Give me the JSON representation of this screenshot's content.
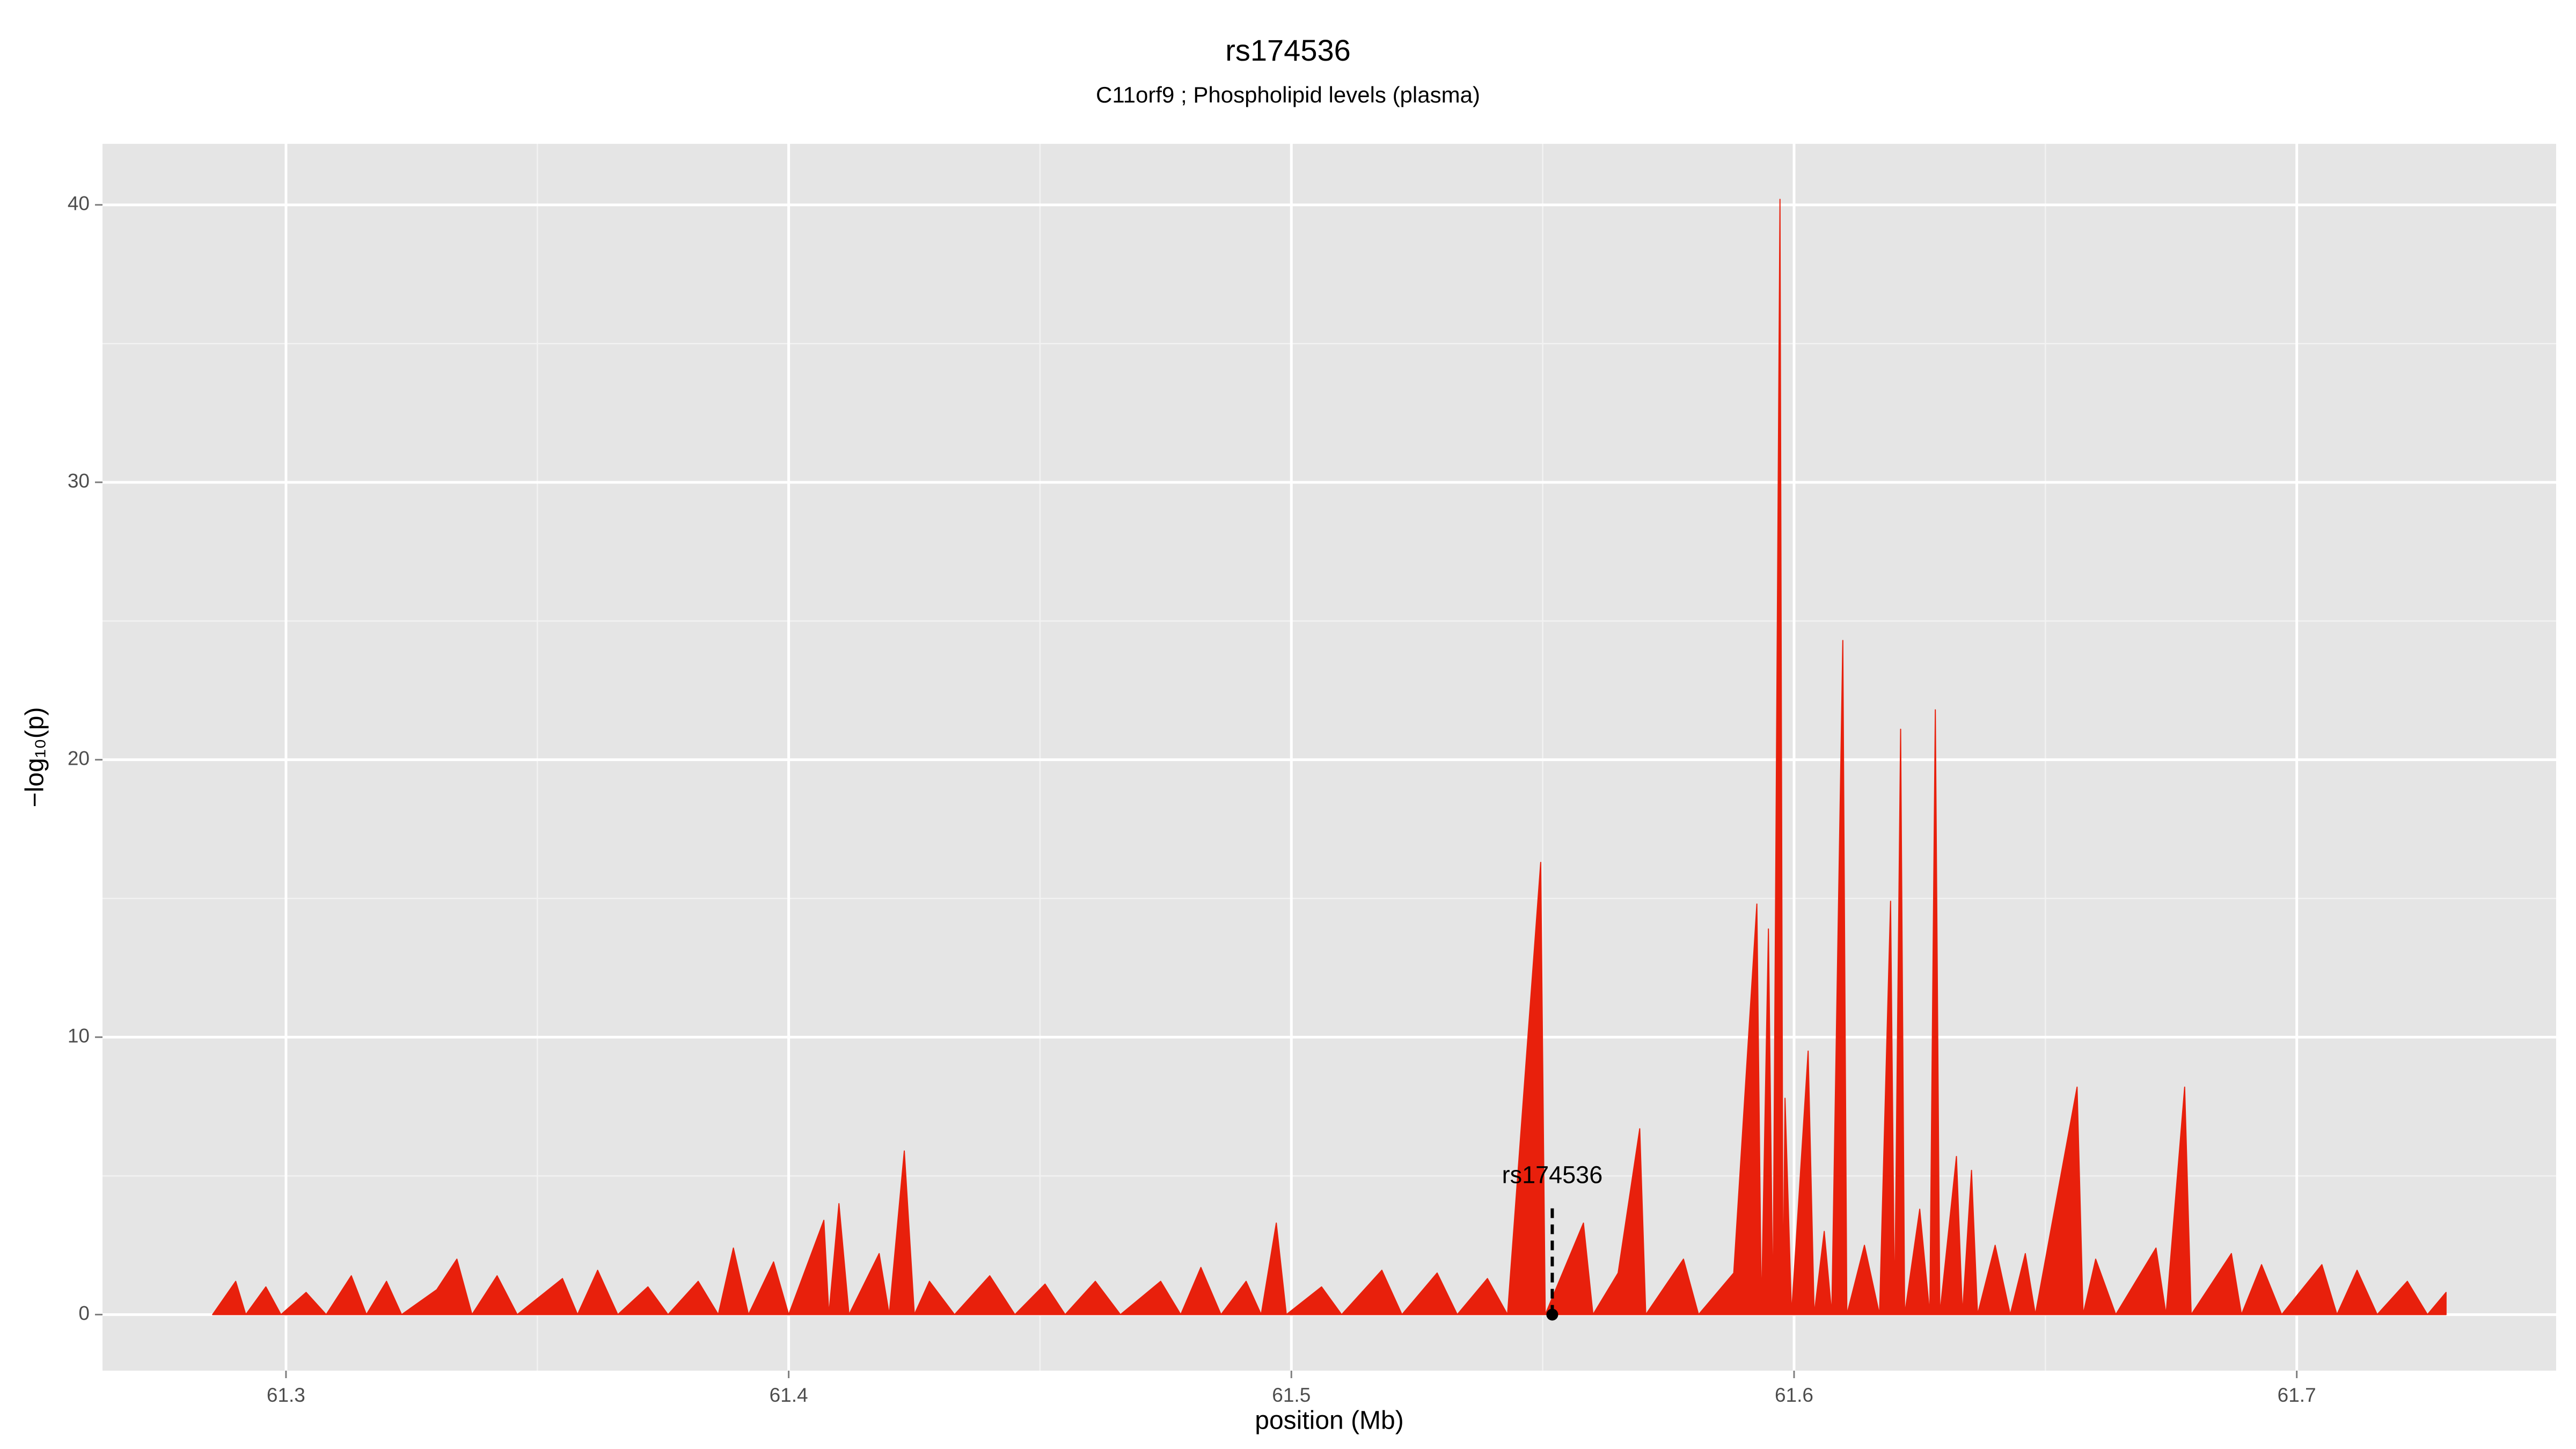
{
  "chart_data": {
    "type": "area",
    "title": "rs174536",
    "subtitle": "C11orf9 ; Phospholipid levels (plasma)",
    "x_label": "position (Mb)",
    "y_label": "−log₁₀(p)",
    "color": "#e8200c",
    "x": [
      61.2854,
      61.29,
      61.292,
      61.296,
      61.299,
      61.304,
      61.308,
      61.313,
      61.316,
      61.32,
      61.323,
      61.33,
      61.334,
      61.337,
      61.342,
      61.346,
      61.355,
      61.358,
      61.362,
      61.366,
      61.372,
      61.376,
      61.382,
      61.386,
      61.389,
      61.392,
      61.397,
      61.4,
      61.407,
      61.408,
      61.41,
      61.412,
      61.418,
      61.42,
      61.423,
      61.425,
      61.428,
      61.433,
      61.44,
      61.445,
      61.451,
      61.455,
      61.461,
      61.466,
      61.474,
      61.478,
      61.482,
      61.486,
      61.491,
      61.494,
      61.497,
      61.499,
      61.506,
      61.51,
      61.518,
      61.522,
      61.529,
      61.533,
      61.539,
      61.543,
      61.5496,
      61.5505,
      61.5581,
      61.56,
      61.565,
      61.5693,
      61.5705,
      61.578,
      61.581,
      61.588,
      61.5926,
      61.5935,
      61.5949,
      61.5958,
      61.5972,
      61.5978,
      61.5982,
      61.5995,
      61.6028,
      61.604,
      61.606,
      61.6075,
      61.6097,
      61.6105,
      61.614,
      61.617,
      61.6192,
      61.62,
      61.6212,
      61.622,
      61.625,
      61.627,
      61.6281,
      61.629,
      61.6323,
      61.6335,
      61.6353,
      61.6365,
      61.64,
      61.643,
      61.646,
      61.648,
      61.6563,
      61.6575,
      61.66,
      61.664,
      61.669,
      61.672,
      61.674,
      61.6777,
      61.679,
      61.687,
      61.689,
      61.693,
      61.697,
      61.705,
      61.708,
      61.712,
      61.716,
      61.722,
      61.726,
      61.7297
    ],
    "values": [
      0,
      1.2,
      0,
      1.0,
      0,
      0.8,
      0,
      1.4,
      0,
      1.2,
      0,
      0.9,
      2.0,
      0,
      1.4,
      0,
      1.3,
      0,
      1.6,
      0,
      1.0,
      0,
      1.2,
      0,
      2.4,
      0,
      1.9,
      0,
      3.4,
      0,
      4.0,
      0,
      2.2,
      0,
      5.9,
      0,
      1.2,
      0,
      1.4,
      0,
      1.1,
      0,
      1.2,
      0,
      1.2,
      0,
      1.7,
      0,
      1.2,
      0,
      3.3,
      0,
      1.0,
      0,
      1.6,
      0,
      1.5,
      0,
      1.3,
      0,
      16.3,
      0,
      3.3,
      0,
      1.5,
      6.7,
      0,
      2.0,
      0,
      1.5,
      14.8,
      0,
      13.9,
      0,
      40.2,
      0,
      7.8,
      0,
      9.5,
      0,
      3.0,
      0,
      24.3,
      0,
      2.5,
      0,
      14.9,
      0,
      21.1,
      0,
      3.8,
      0,
      21.8,
      0,
      5.7,
      0,
      5.2,
      0,
      2.5,
      0,
      2.2,
      0,
      8.2,
      0,
      2.0,
      0,
      1.5,
      2.4,
      0,
      8.2,
      0,
      2.2,
      0,
      1.8,
      0,
      1.8,
      0,
      1.6,
      0,
      1.2,
      0,
      0.8
    ],
    "xlim": [
      61.2635,
      61.7516
    ],
    "ylim": [
      -2.02,
      42.2
    ],
    "xticks": [
      61.3,
      61.4,
      61.5,
      61.6,
      61.7
    ],
    "yticks": [
      0,
      10,
      20,
      30,
      40
    ],
    "x_minor_ticks": [
      61.35,
      61.45,
      61.55,
      61.65
    ],
    "y_minor_ticks": [
      5,
      15,
      25,
      35
    ],
    "grid": true,
    "annotation": {
      "label": "rs174536",
      "x": 61.5519,
      "y": 0,
      "line_top": 4.0
    }
  }
}
